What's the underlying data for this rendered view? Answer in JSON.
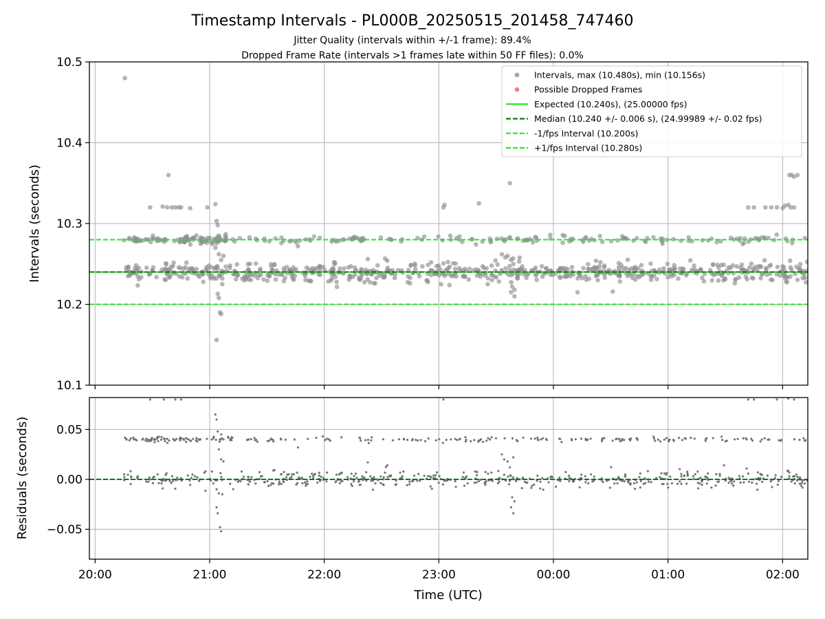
{
  "chart_data": [
    {
      "type": "scatter",
      "title": "Timestamp Intervals - PL000B_20250515_201458_747460",
      "subtitle_lines": [
        "Jitter Quality (intervals within +/-1 frame): 89.4%",
        "Dropped Frame Rate (intervals >1 frames late within 50 FF files): 0.0%"
      ],
      "xlabel": "",
      "ylabel": "Intervals (seconds)",
      "x_unit": "hours since 20:00 UTC",
      "xlim": [
        -0.05,
        6.22
      ],
      "ylim": [
        10.1,
        10.5
      ],
      "x_ticks": [
        0,
        1,
        2,
        3,
        4,
        5,
        6
      ],
      "y_ticks": [
        10.1,
        10.2,
        10.3,
        10.4,
        10.5
      ],
      "y_tick_labels": [
        "10.1",
        "10.2",
        "10.3",
        "10.4",
        "10.5"
      ],
      "grid": true,
      "legend_position": "top-right",
      "legend": [
        {
          "label": "Intervals, max (10.480s), min (10.156s)",
          "kind": "marker",
          "color": "#9a9a9a"
        },
        {
          "label": "Possible Dropped Frames",
          "kind": "marker",
          "color": "#f07070"
        },
        {
          "label": "Expected (10.240s), (25.00000 fps)",
          "kind": "solid",
          "color": "#22e822"
        },
        {
          "label": "Median (10.240 +/- 0.006 s), (24.99989 +/- 0.02 fps)",
          "kind": "dashed",
          "color": "#0a7a0a"
        },
        {
          "label": "-1/fps Interval (10.200s)",
          "kind": "dashed",
          "color": "#22e822"
        },
        {
          "label": "+1/fps Interval (10.280s)",
          "kind": "dashed",
          "color": "#22e822"
        }
      ],
      "reference_lines": [
        {
          "y": 10.24,
          "style": "solid",
          "color": "#22e822"
        },
        {
          "y": 10.24,
          "style": "dashed",
          "color": "#0a7a0a"
        },
        {
          "y": 10.2,
          "style": "dashed",
          "color": "#22e822"
        },
        {
          "y": 10.28,
          "style": "dashed",
          "color": "#22e822"
        }
      ],
      "intervals_max": 10.48,
      "intervals_min": 10.156,
      "bands": [
        {
          "center": 10.24,
          "spread": 0.006,
          "count": 700,
          "x_range": [
            0.25,
            6.22
          ]
        },
        {
          "center": 10.28,
          "spread": 0.002,
          "count": 260,
          "x_range": [
            0.25,
            6.22
          ]
        }
      ],
      "band_point_color": "#888888",
      "points": [
        [
          0.26,
          10.48
        ],
        [
          0.64,
          10.36
        ],
        [
          0.48,
          10.32
        ],
        [
          0.59,
          10.321
        ],
        [
          0.63,
          10.32
        ],
        [
          0.67,
          10.32
        ],
        [
          0.7,
          10.32
        ],
        [
          0.73,
          10.32
        ],
        [
          0.75,
          10.32
        ],
        [
          0.83,
          10.319
        ],
        [
          0.98,
          10.32
        ],
        [
          1.05,
          10.324
        ],
        [
          1.06,
          10.303
        ],
        [
          1.07,
          10.298
        ],
        [
          1.08,
          10.285
        ],
        [
          1.05,
          10.27
        ],
        [
          1.08,
          10.262
        ],
        [
          1.1,
          10.255
        ],
        [
          1.12,
          10.26
        ],
        [
          1.05,
          10.245
        ],
        [
          1.07,
          10.213
        ],
        [
          1.08,
          10.208
        ],
        [
          1.09,
          10.19
        ],
        [
          1.1,
          10.188
        ],
        [
          1.06,
          10.156
        ],
        [
          1.04,
          10.232
        ],
        [
          1.11,
          10.225
        ],
        [
          1.14,
          10.287
        ],
        [
          3.04,
          10.32
        ],
        [
          3.05,
          10.323
        ],
        [
          3.35,
          10.325
        ],
        [
          3.62,
          10.35
        ],
        [
          3.55,
          10.262
        ],
        [
          3.58,
          10.258
        ],
        [
          3.6,
          10.26
        ],
        [
          3.63,
          10.255
        ],
        [
          3.65,
          10.25
        ],
        [
          3.62,
          10.242
        ],
        [
          3.64,
          10.222
        ],
        [
          3.66,
          10.218
        ],
        [
          3.63,
          10.215
        ],
        [
          3.66,
          10.21
        ],
        [
          2.38,
          10.256
        ],
        [
          2.55,
          10.254
        ],
        [
          1.77,
          10.272
        ],
        [
          3.62,
          10.283
        ],
        [
          5.7,
          10.32
        ],
        [
          5.75,
          10.32
        ],
        [
          5.85,
          10.32
        ],
        [
          5.9,
          10.32
        ],
        [
          5.95,
          10.32
        ],
        [
          6.0,
          10.319
        ],
        [
          6.02,
          10.322
        ],
        [
          6.05,
          10.323
        ],
        [
          6.07,
          10.32
        ],
        [
          6.1,
          10.32
        ],
        [
          6.06,
          10.36
        ],
        [
          6.08,
          10.36
        ],
        [
          6.1,
          10.358
        ],
        [
          6.13,
          10.36
        ]
      ]
    },
    {
      "type": "scatter",
      "title": "",
      "xlabel": "Time (UTC)",
      "ylabel": "Residuals (seconds)",
      "x_unit": "hours since 20:00 UTC",
      "xlim": [
        -0.05,
        6.22
      ],
      "ylim": [
        -0.08,
        0.082
      ],
      "x_ticks": [
        0,
        1,
        2,
        3,
        4,
        5,
        6
      ],
      "x_tick_labels": [
        "20:00",
        "21:00",
        "22:00",
        "23:00",
        "00:00",
        "01:00",
        "02:00"
      ],
      "y_ticks": [
        -0.05,
        0.0,
        0.05
      ],
      "y_tick_labels": [
        "−0.05",
        "0.00",
        "0.05"
      ],
      "grid": true,
      "reference_line": {
        "y": 0.0,
        "style": "dashed",
        "color": "#0a7a0a"
      },
      "point_color": "#707070",
      "bands": [
        {
          "center": 0.0,
          "spread": 0.004,
          "count": 520,
          "x_range": [
            0.25,
            6.22
          ]
        },
        {
          "center": 0.04,
          "spread": 0.0012,
          "count": 240,
          "x_range": [
            0.25,
            6.22
          ]
        }
      ],
      "points": [
        [
          1.05,
          0.065
        ],
        [
          1.06,
          0.06
        ],
        [
          1.07,
          0.048
        ],
        [
          1.1,
          0.045
        ],
        [
          1.12,
          0.04
        ],
        [
          1.08,
          0.03
        ],
        [
          1.1,
          0.02
        ],
        [
          1.12,
          0.018
        ],
        [
          1.06,
          -0.028
        ],
        [
          1.07,
          -0.034
        ],
        [
          1.09,
          -0.048
        ],
        [
          1.1,
          -0.052
        ],
        [
          1.06,
          -0.01
        ],
        [
          1.08,
          -0.014
        ],
        [
          1.11,
          -0.015
        ],
        [
          3.55,
          0.025
        ],
        [
          3.57,
          0.02
        ],
        [
          3.6,
          0.018
        ],
        [
          3.62,
          0.012
        ],
        [
          3.65,
          0.022
        ],
        [
          3.64,
          -0.018
        ],
        [
          3.66,
          -0.022
        ],
        [
          3.63,
          -0.028
        ],
        [
          3.65,
          -0.034
        ],
        [
          2.38,
          0.017
        ],
        [
          2.55,
          0.014
        ],
        [
          1.77,
          0.032
        ],
        [
          0.48,
          0.08
        ],
        [
          0.6,
          0.08
        ],
        [
          0.7,
          0.08
        ],
        [
          0.75,
          0.08
        ],
        [
          3.04,
          0.08
        ],
        [
          5.7,
          0.08
        ],
        [
          5.75,
          0.08
        ],
        [
          5.95,
          0.08
        ],
        [
          6.05,
          0.081
        ],
        [
          6.1,
          0.08
        ]
      ]
    }
  ]
}
